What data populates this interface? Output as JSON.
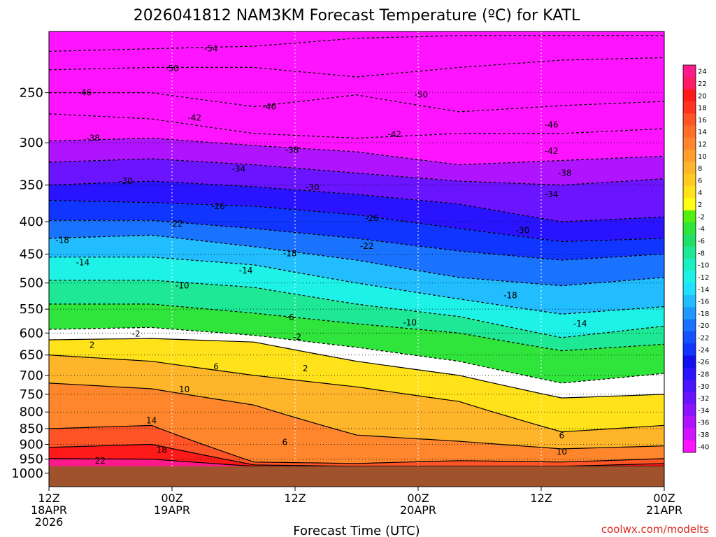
{
  "chart_data": {
    "type": "heatmap",
    "title": "2026041812 NAM3KM Forecast Temperature (ºC) for KATL",
    "xlabel": "Forecast Time (UTC)",
    "ylabel": "",
    "credit": "coolwx.com/modelts",
    "x_ticks": [
      {
        "hours": 0,
        "lines": [
          "12Z",
          "18APR",
          "2026"
        ]
      },
      {
        "hours": 12,
        "lines": [
          "00Z",
          "19APR"
        ]
      },
      {
        "hours": 24,
        "lines": [
          "12Z"
        ]
      },
      {
        "hours": 36,
        "lines": [
          "00Z",
          "20APR"
        ]
      },
      {
        "hours": 48,
        "lines": [
          "12Z"
        ]
      },
      {
        "hours": 60,
        "lines": [
          "00Z",
          "21APR"
        ]
      }
    ],
    "xlim_hours": [
      0,
      60
    ],
    "y_axis": {
      "scale": "log",
      "reversed": true,
      "ylim_hPa": [
        200,
        1050
      ]
    },
    "y_ticks": [
      250,
      300,
      350,
      400,
      450,
      500,
      550,
      600,
      650,
      700,
      750,
      800,
      850,
      900,
      950,
      1000
    ],
    "ground_level_hPa": 975,
    "grid": {
      "vertical": "dotted",
      "horizontal": "dotted"
    },
    "colorbar": {
      "levels": [
        24,
        22,
        20,
        18,
        16,
        14,
        12,
        10,
        8,
        6,
        4,
        2,
        -2,
        -4,
        -6,
        -8,
        -10,
        -12,
        -14,
        -16,
        -18,
        -20,
        -22,
        -24,
        -26,
        -28,
        -30,
        -32,
        -34,
        -36,
        -38,
        -40
      ],
      "colors": {
        "24": "#ff1a8c",
        "22": "#ff1a66",
        "20": "#ff1a1a",
        "18": "#ff3320",
        "16": "#ff5526",
        "14": "#ff6e2a",
        "12": "#ff862c",
        "10": "#ff9e2d",
        "8": "#ffb52a",
        "6": "#ffcb22",
        "4": "#ffe21a",
        "2": "#ffff14",
        "0": "#ffffff",
        "-2": "#55ee11",
        "-4": "#2fe43a",
        "-6": "#22df66",
        "-8": "#1ee895",
        "-10": "#1af0c2",
        "-12": "#1ef2e6",
        "-14": "#22e0ff",
        "-16": "#22bdff",
        "-18": "#1f98ff",
        "-20": "#1a73ff",
        "-22": "#1451ff",
        "-24": "#0f35ff",
        "-26": "#1010f0",
        "-28": "#2a14ff",
        "-30": "#4a14ff",
        "-32": "#6a14ff",
        "-34": "#8d14ff",
        "-36": "#b014ff",
        "-38": "#d214ff",
        "-40": "#ff14ff"
      },
      "placement": "right"
    },
    "series": [
      {
        "name": "-54",
        "x": [
          0,
          10,
          20,
          30,
          40,
          50,
          60
        ],
        "y": [
          215,
          213,
          211,
          205,
          203,
          203,
          203
        ]
      },
      {
        "name": "-50",
        "x": [
          0,
          10,
          20,
          30,
          40,
          50,
          60
        ],
        "y": [
          230,
          228,
          228,
          236,
          228,
          222,
          220
        ]
      },
      {
        "name": "-46",
        "x": [
          0,
          10,
          20,
          30,
          40,
          50,
          60
        ],
        "y": [
          250,
          250,
          263,
          252,
          268,
          262,
          258
        ]
      },
      {
        "name": "-42",
        "x": [
          0,
          10,
          20,
          30,
          40,
          50,
          60
        ],
        "y": [
          270,
          275,
          290,
          295,
          290,
          290,
          285
        ]
      },
      {
        "name": "-38",
        "x": [
          0,
          10,
          20,
          30,
          40,
          50,
          60
        ],
        "y": [
          298,
          295,
          303,
          310,
          325,
          320,
          315
        ]
      },
      {
        "name": "-34",
        "x": [
          0,
          10,
          20,
          30,
          40,
          50,
          60
        ],
        "y": [
          322,
          318,
          325,
          335,
          345,
          350,
          342
        ]
      },
      {
        "name": "-30",
        "x": [
          0,
          10,
          20,
          30,
          40,
          50,
          60
        ],
        "y": [
          350,
          345,
          352,
          362,
          375,
          400,
          393
        ]
      },
      {
        "name": "-26",
        "x": [
          0,
          10,
          20,
          30,
          40,
          50,
          60
        ],
        "y": [
          370,
          373,
          378,
          390,
          410,
          430,
          425
        ]
      },
      {
        "name": "-22",
        "x": [
          0,
          10,
          20,
          30,
          40,
          50,
          60
        ],
        "y": [
          398,
          398,
          410,
          425,
          445,
          460,
          450
        ]
      },
      {
        "name": "-18",
        "x": [
          0,
          10,
          20,
          30,
          40,
          50,
          60
        ],
        "y": [
          425,
          420,
          438,
          460,
          490,
          505,
          490
        ]
      },
      {
        "name": "-14",
        "x": [
          0,
          10,
          20,
          30,
          40,
          50,
          60
        ],
        "y": [
          455,
          455,
          468,
          500,
          530,
          560,
          545
        ]
      },
      {
        "name": "-10",
        "x": [
          0,
          10,
          20,
          30,
          40,
          50,
          60
        ],
        "y": [
          495,
          495,
          508,
          540,
          565,
          610,
          585
        ]
      },
      {
        "name": "-6",
        "x": [
          0,
          10,
          20,
          30,
          40,
          50,
          60
        ],
        "y": [
          540,
          540,
          558,
          580,
          600,
          640,
          625
        ]
      },
      {
        "name": "-2",
        "x": [
          0,
          10,
          20,
          30,
          40,
          50,
          60
        ],
        "y": [
          592,
          588,
          605,
          632,
          665,
          720,
          695
        ]
      },
      {
        "name": "2",
        "x": [
          0,
          10,
          20,
          30,
          40,
          50,
          60
        ],
        "y": [
          615,
          612,
          620,
          665,
          700,
          760,
          750
        ]
      },
      {
        "name": "6",
        "x": [
          0,
          10,
          20,
          30,
          40,
          50,
          60
        ],
        "y": [
          650,
          665,
          700,
          730,
          770,
          860,
          840
        ]
      },
      {
        "name": "10",
        "x": [
          0,
          10,
          20,
          30,
          40,
          50,
          60
        ],
        "y": [
          720,
          735,
          780,
          870,
          890,
          915,
          905
        ]
      },
      {
        "name": "14",
        "x": [
          0,
          10,
          20,
          30,
          40,
          50,
          60
        ],
        "y": [
          850,
          840,
          960,
          965,
          955,
          960,
          948
        ]
      },
      {
        "name": "18",
        "x": [
          0,
          10,
          20,
          30,
          40,
          50,
          60
        ],
        "y": [
          910,
          900,
          970,
          975,
          975,
          975,
          965
        ]
      },
      {
        "name": "22",
        "x": [
          0,
          10,
          20,
          30,
          40,
          50,
          60
        ],
        "y": [
          948,
          950,
          975,
          975,
          975,
          975,
          975
        ]
      }
    ],
    "contour_labels": [
      {
        "text": "-54",
        "hours": 15.8,
        "hPa": 213
      },
      {
        "text": "-50",
        "hours": 12.0,
        "hPa": 229
      },
      {
        "text": "-46",
        "hours": 3.5,
        "hPa": 250
      },
      {
        "text": "-46",
        "hours": 21.5,
        "hPa": 263
      },
      {
        "text": "-50",
        "hours": 36.3,
        "hPa": 252
      },
      {
        "text": "-46",
        "hours": 49.0,
        "hPa": 281
      },
      {
        "text": "-42",
        "hours": 14.2,
        "hPa": 274
      },
      {
        "text": "-42",
        "hours": 33.7,
        "hPa": 291
      },
      {
        "text": "-42",
        "hours": 49.0,
        "hPa": 309
      },
      {
        "text": "-38",
        "hours": 4.3,
        "hPa": 295
      },
      {
        "text": "-38",
        "hours": 23.7,
        "hPa": 308
      },
      {
        "text": "-38",
        "hours": 50.3,
        "hPa": 335
      },
      {
        "text": "-34",
        "hours": 18.5,
        "hPa": 330
      },
      {
        "text": "-34",
        "hours": 49.0,
        "hPa": 362
      },
      {
        "text": "-30",
        "hours": 7.5,
        "hPa": 345
      },
      {
        "text": "-30",
        "hours": 25.7,
        "hPa": 353
      },
      {
        "text": "-30",
        "hours": 46.2,
        "hPa": 413
      },
      {
        "text": "-26",
        "hours": 16.5,
        "hPa": 378
      },
      {
        "text": "-26",
        "hours": 31.5,
        "hPa": 395
      },
      {
        "text": "-22",
        "hours": 12.4,
        "hPa": 403
      },
      {
        "text": "-22",
        "hours": 31.0,
        "hPa": 437
      },
      {
        "text": "-18",
        "hours": 1.3,
        "hPa": 428
      },
      {
        "text": "-18",
        "hours": 23.5,
        "hPa": 449
      },
      {
        "text": "-18",
        "hours": 45.0,
        "hPa": 523
      },
      {
        "text": "-14",
        "hours": 3.3,
        "hPa": 464
      },
      {
        "text": "-14",
        "hours": 19.2,
        "hPa": 478
      },
      {
        "text": "-14",
        "hours": 51.8,
        "hPa": 580
      },
      {
        "text": "-10",
        "hours": 13.0,
        "hPa": 505
      },
      {
        "text": "-10",
        "hours": 35.2,
        "hPa": 578
      },
      {
        "text": "-6",
        "hours": 23.5,
        "hPa": 567
      },
      {
        "text": "-2",
        "hours": 8.5,
        "hPa": 602
      },
      {
        "text": "-2",
        "hours": 24.2,
        "hPa": 609
      },
      {
        "text": "2",
        "hours": 4.2,
        "hPa": 627
      },
      {
        "text": "2",
        "hours": 25.0,
        "hPa": 683
      },
      {
        "text": "6",
        "hours": 16.3,
        "hPa": 678
      },
      {
        "text": "10",
        "hours": 13.2,
        "hPa": 737
      },
      {
        "text": "14",
        "hours": 10.0,
        "hPa": 825
      },
      {
        "text": "18",
        "hours": 11.0,
        "hPa": 918
      },
      {
        "text": "22",
        "hours": 5.0,
        "hPa": 955
      },
      {
        "text": "6",
        "hours": 23.0,
        "hPa": 893
      },
      {
        "text": "6",
        "hours": 50.0,
        "hPa": 872
      },
      {
        "text": "10",
        "hours": 50.0,
        "hPa": 924
      }
    ]
  }
}
